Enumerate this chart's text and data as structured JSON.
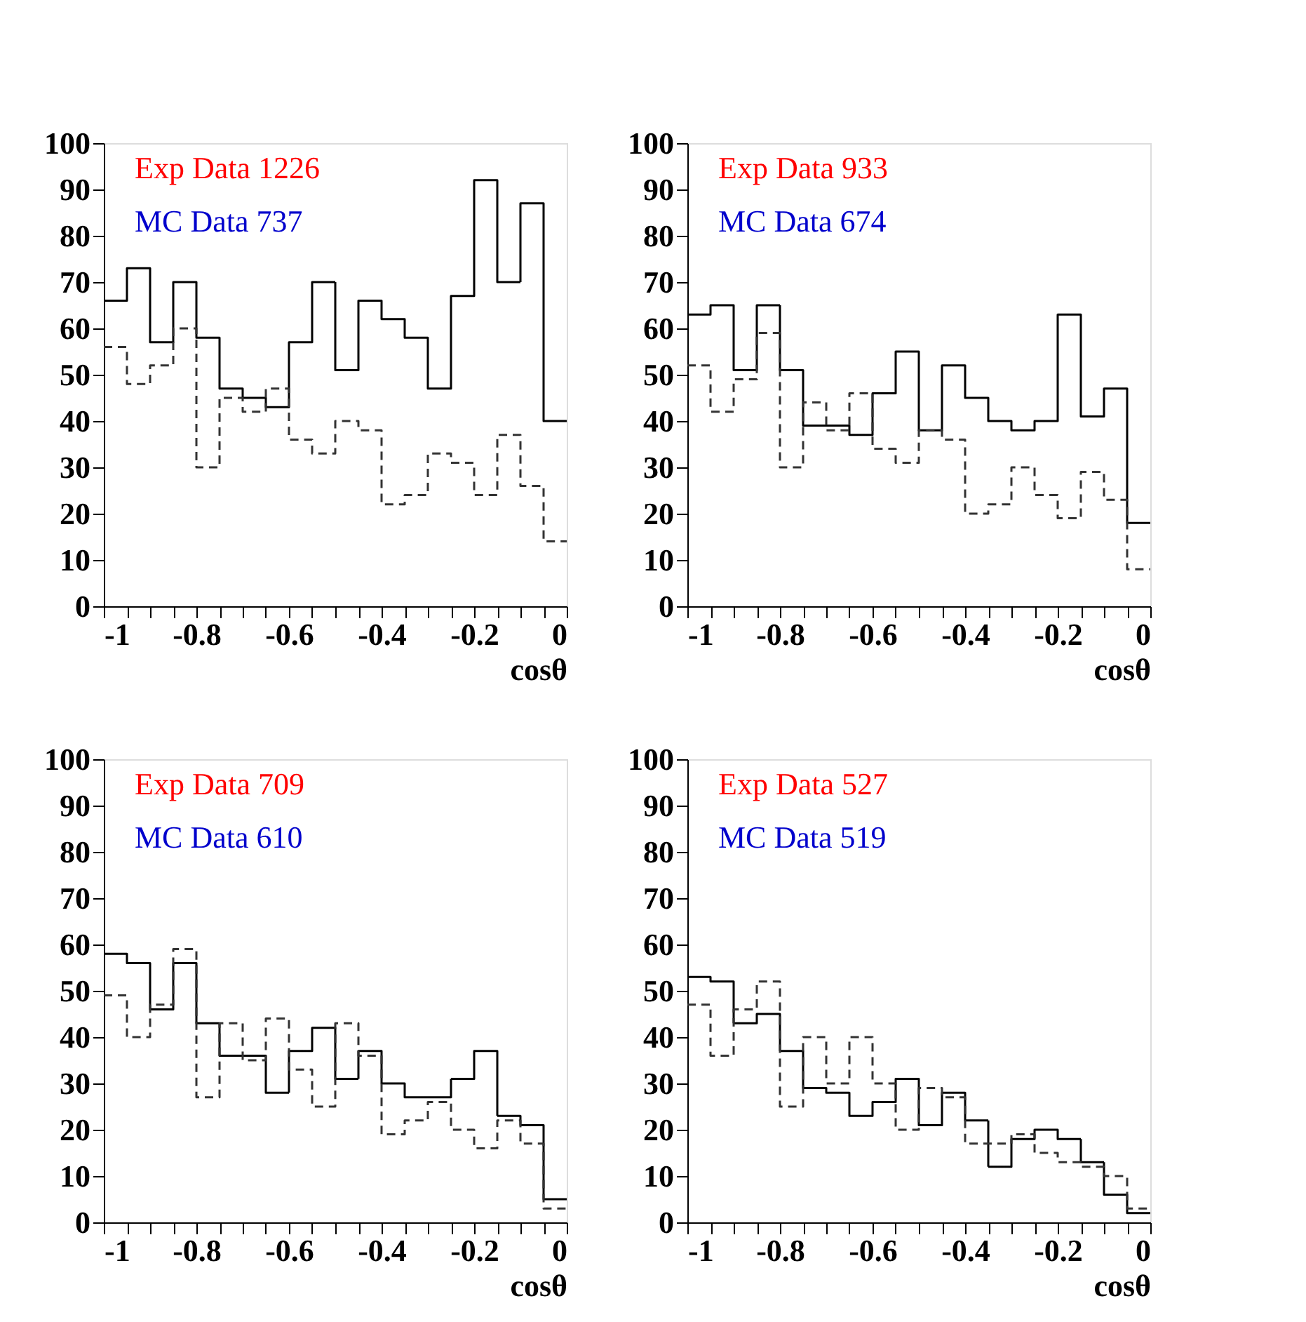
{
  "chart_data": [
    {
      "type": "histogram",
      "xlabel": "cosθ",
      "annotations": [
        "Exp Data 1226",
        "MC Data  737"
      ],
      "bins": [
        -1,
        -0.95,
        -0.9,
        -0.85,
        -0.8,
        -0.75,
        -0.7,
        -0.65,
        -0.6,
        -0.55,
        -0.5,
        -0.45,
        -0.4,
        -0.35,
        -0.3,
        -0.25,
        -0.2,
        -0.15,
        -0.1,
        -0.05,
        0
      ],
      "xlim": [
        -1,
        0
      ],
      "xticks": [
        -1,
        -0.8,
        -0.6,
        -0.4,
        -0.2,
        0
      ],
      "ylim": [
        0,
        100
      ],
      "yticks": [
        0,
        10,
        20,
        30,
        40,
        50,
        60,
        70,
        80,
        90,
        100
      ],
      "grid": false,
      "legend": false,
      "series": [
        {
          "color": "#000000",
          "line_style": "solid",
          "values": [
            66,
            73,
            57,
            70,
            58,
            47,
            45,
            43,
            57,
            70,
            51,
            66,
            62,
            58,
            47,
            67,
            92,
            70,
            87,
            40
          ]
        },
        {
          "color": "#333333",
          "line_style": "dashed",
          "values": [
            56,
            48,
            52,
            60,
            30,
            45,
            42,
            47,
            36,
            33,
            40,
            38,
            22,
            24,
            33,
            31,
            24,
            37,
            26,
            14
          ]
        }
      ]
    },
    {
      "type": "histogram",
      "xlabel": "cosθ",
      "annotations": [
        "Exp Data 933",
        "MC Data 674"
      ],
      "bins": [
        -1,
        -0.95,
        -0.9,
        -0.85,
        -0.8,
        -0.75,
        -0.7,
        -0.65,
        -0.6,
        -0.55,
        -0.5,
        -0.45,
        -0.4,
        -0.35,
        -0.3,
        -0.25,
        -0.2,
        -0.15,
        -0.1,
        -0.05,
        0
      ],
      "xlim": [
        -1,
        0
      ],
      "xticks": [
        -1,
        -0.8,
        -0.6,
        -0.4,
        -0.2,
        0
      ],
      "ylim": [
        0,
        100
      ],
      "yticks": [
        0,
        10,
        20,
        30,
        40,
        50,
        60,
        70,
        80,
        90,
        100
      ],
      "grid": false,
      "legend": false,
      "series": [
        {
          "color": "#000000",
          "line_style": "solid",
          "values": [
            63,
            65,
            51,
            65,
            51,
            39,
            39,
            37,
            46,
            55,
            38,
            52,
            45,
            40,
            38,
            40,
            63,
            41,
            47,
            18
          ]
        },
        {
          "color": "#333333",
          "line_style": "dashed",
          "values": [
            52,
            42,
            49,
            59,
            30,
            44,
            38,
            46,
            34,
            31,
            38,
            36,
            20,
            22,
            30,
            24,
            19,
            29,
            23,
            8
          ]
        }
      ]
    },
    {
      "type": "histogram",
      "xlabel": "cosθ",
      "annotations": [
        "Exp Data 709",
        "MC Data 610"
      ],
      "bins": [
        -1,
        -0.95,
        -0.9,
        -0.85,
        -0.8,
        -0.75,
        -0.7,
        -0.65,
        -0.6,
        -0.55,
        -0.5,
        -0.45,
        -0.4,
        -0.35,
        -0.3,
        -0.25,
        -0.2,
        -0.15,
        -0.1,
        -0.05,
        0
      ],
      "xlim": [
        -1,
        0
      ],
      "xticks": [
        -1,
        -0.8,
        -0.6,
        -0.4,
        -0.2,
        0
      ],
      "ylim": [
        0,
        100
      ],
      "yticks": [
        0,
        10,
        20,
        30,
        40,
        50,
        60,
        70,
        80,
        90,
        100
      ],
      "grid": false,
      "legend": false,
      "series": [
        {
          "color": "#000000",
          "line_style": "solid",
          "values": [
            58,
            56,
            46,
            56,
            43,
            36,
            36,
            28,
            37,
            42,
            31,
            37,
            30,
            27,
            27,
            31,
            37,
            23,
            21,
            5
          ]
        },
        {
          "color": "#333333",
          "line_style": "dashed",
          "values": [
            49,
            40,
            47,
            59,
            27,
            43,
            35,
            44,
            33,
            25,
            43,
            36,
            19,
            22,
            26,
            20,
            16,
            22,
            17,
            3
          ]
        }
      ]
    },
    {
      "type": "histogram",
      "xlabel": "cosθ",
      "annotations": [
        "Exp Data 527",
        "MC Data 519"
      ],
      "bins": [
        -1,
        -0.95,
        -0.9,
        -0.85,
        -0.8,
        -0.75,
        -0.7,
        -0.65,
        -0.6,
        -0.55,
        -0.5,
        -0.45,
        -0.4,
        -0.35,
        -0.3,
        -0.25,
        -0.2,
        -0.15,
        -0.1,
        -0.05,
        0
      ],
      "xlim": [
        -1,
        0
      ],
      "xticks": [
        -1,
        -0.8,
        -0.6,
        -0.4,
        -0.2,
        0
      ],
      "ylim": [
        0,
        100
      ],
      "yticks": [
        0,
        10,
        20,
        30,
        40,
        50,
        60,
        70,
        80,
        90,
        100
      ],
      "grid": false,
      "legend": false,
      "series": [
        {
          "color": "#000000",
          "line_style": "solid",
          "values": [
            53,
            52,
            43,
            45,
            37,
            29,
            28,
            23,
            26,
            31,
            21,
            28,
            22,
            12,
            18,
            20,
            18,
            13,
            6,
            2
          ]
        },
        {
          "color": "#333333",
          "line_style": "dashed",
          "values": [
            47,
            36,
            46,
            52,
            25,
            40,
            30,
            40,
            30,
            20,
            29,
            27,
            17,
            17,
            19,
            15,
            13,
            12,
            10,
            3
          ]
        }
      ]
    }
  ]
}
